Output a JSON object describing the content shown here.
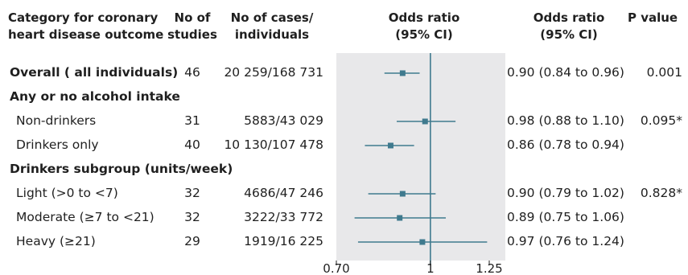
{
  "headers": {
    "category": [
      "Category for coronary",
      "heart disease outcome"
    ],
    "studies": [
      "No of",
      "studies"
    ],
    "cases": [
      "No of cases/",
      "individuals"
    ],
    "or_plot": [
      "Odds ratio",
      "(95% CI)"
    ],
    "or_text": [
      "Odds ratio",
      "(95% CI)"
    ],
    "p": [
      "P value"
    ]
  },
  "rows": [
    {
      "kind": "data",
      "bold": true,
      "label": "Overall ( all individuals)",
      "studies": "46",
      "cases": "20 259/168 731",
      "ci_text": "0.90 (0.84 to 0.96)",
      "p": "0.001"
    },
    {
      "kind": "section",
      "label": "Any or no alcohol intake"
    },
    {
      "kind": "data",
      "bold": false,
      "label": "Non-drinkers",
      "studies": "31",
      "cases": "5883/43 029",
      "ci_text": "0.98 (0.88 to 1.10)",
      "p": "0.095*"
    },
    {
      "kind": "data",
      "bold": false,
      "label": "Drinkers only",
      "studies": "40",
      "cases": "10 130/107 478",
      "ci_text": "0.86 (0.78 to 0.94)",
      "p": ""
    },
    {
      "kind": "section",
      "label": "Drinkers subgroup (units/week)"
    },
    {
      "kind": "data",
      "bold": false,
      "label": "Light (>0 to <7)",
      "studies": "32",
      "cases": "4686/47 246",
      "ci_text": "0.90 (0.79 to 1.02)",
      "p": "0.828*"
    },
    {
      "kind": "data",
      "bold": false,
      "label": "Moderate (≥7 to <21)",
      "studies": "32",
      "cases": "3222/33 772",
      "ci_text": "0.89 (0.75 to 1.06)",
      "p": ""
    },
    {
      "kind": "data",
      "bold": false,
      "label": "Heavy (≥21)",
      "studies": "29",
      "cases": "1919/16 225",
      "ci_text": "0.97 (0.76 to 1.24)",
      "p": ""
    }
  ],
  "chart_data": {
    "type": "forest",
    "x_scale": "log",
    "xlim": [
      0.7,
      1.25
    ],
    "reference_line": 1,
    "ticks": [
      {
        "value": 0.7,
        "label": "0.70"
      },
      {
        "value": 1,
        "label": "1"
      },
      {
        "value": 1.25,
        "label": "1.25"
      }
    ],
    "estimates": [
      {
        "row": 0,
        "or": 0.9,
        "lo": 0.84,
        "hi": 0.96
      },
      {
        "row": 2,
        "or": 0.98,
        "lo": 0.88,
        "hi": 1.1
      },
      {
        "row": 3,
        "or": 0.86,
        "lo": 0.78,
        "hi": 0.94
      },
      {
        "row": 5,
        "or": 0.9,
        "lo": 0.79,
        "hi": 1.02
      },
      {
        "row": 6,
        "or": 0.89,
        "lo": 0.75,
        "hi": 1.06
      },
      {
        "row": 7,
        "or": 0.97,
        "lo": 0.76,
        "hi": 1.24
      }
    ],
    "colors": {
      "marker": "#3f7a8e",
      "panel": "#e8e8ea",
      "text": "#1f1f1f"
    }
  }
}
